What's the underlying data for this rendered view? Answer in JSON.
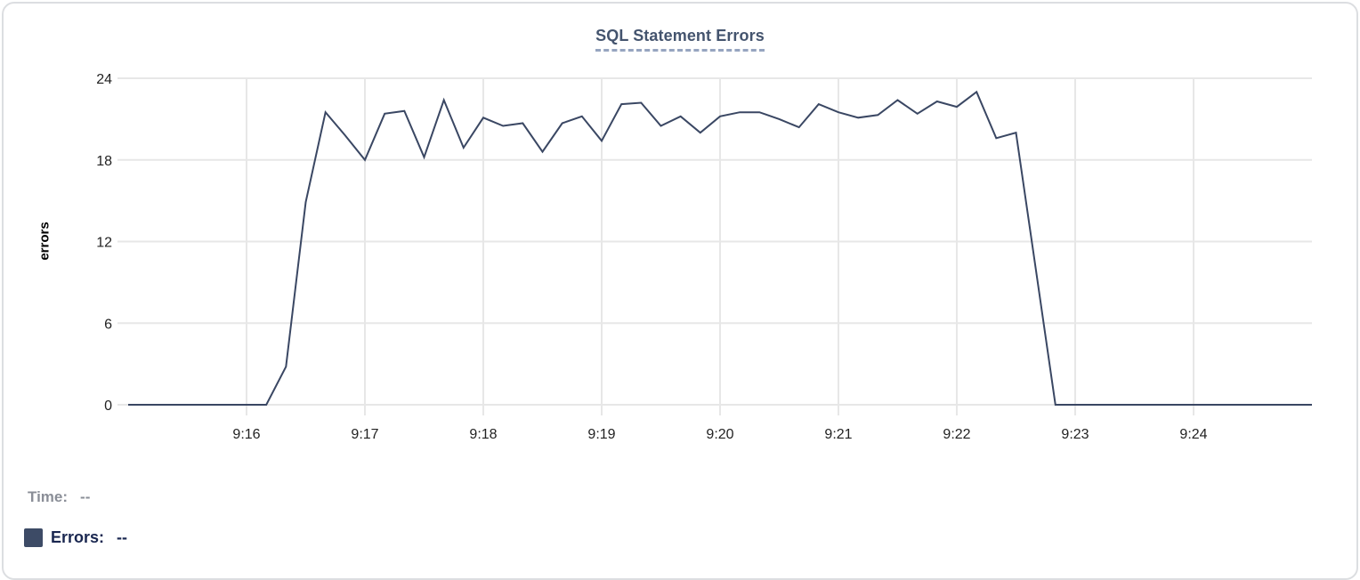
{
  "chart_data": {
    "type": "line",
    "title": "SQL Statement Errors",
    "ylabel": "errors",
    "xlabel": "",
    "y_ticks": [
      0,
      6,
      12,
      18,
      24
    ],
    "ylim": [
      0,
      24
    ],
    "x_tick_labels": [
      "9:16",
      "9:17",
      "9:18",
      "9:19",
      "9:20",
      "9:21",
      "9:22",
      "9:23",
      "9:24"
    ],
    "x_range": [
      "9:15:00",
      "9:25:00"
    ],
    "sample_interval_seconds": 10,
    "grid": true,
    "legend_position": "bottom-left",
    "line_color": "#3a4763",
    "series": [
      {
        "name": "Errors",
        "points": [
          [
            "9:15:00",
            0
          ],
          [
            "9:15:10",
            0
          ],
          [
            "9:15:20",
            0
          ],
          [
            "9:15:30",
            0
          ],
          [
            "9:15:40",
            0
          ],
          [
            "9:15:50",
            0
          ],
          [
            "9:16:00",
            0
          ],
          [
            "9:16:10",
            0
          ],
          [
            "9:16:20",
            2.8
          ],
          [
            "9:16:30",
            14.9
          ],
          [
            "9:16:40",
            21.5
          ],
          [
            "9:16:50",
            19.8
          ],
          [
            "9:17:00",
            18
          ],
          [
            "9:17:10",
            21.4
          ],
          [
            "9:17:20",
            21.6
          ],
          [
            "9:17:30",
            18.2
          ],
          [
            "9:17:40",
            22.4
          ],
          [
            "9:17:50",
            18.9
          ],
          [
            "9:18:00",
            21.1
          ],
          [
            "9:18:10",
            20.5
          ],
          [
            "9:18:20",
            20.7
          ],
          [
            "9:18:30",
            18.6
          ],
          [
            "9:18:40",
            20.7
          ],
          [
            "9:18:50",
            21.2
          ],
          [
            "9:19:00",
            19.4
          ],
          [
            "9:19:10",
            22.1
          ],
          [
            "9:19:20",
            22.2
          ],
          [
            "9:19:30",
            20.5
          ],
          [
            "9:19:40",
            21.2
          ],
          [
            "9:19:50",
            20
          ],
          [
            "9:20:00",
            21.2
          ],
          [
            "9:20:10",
            21.5
          ],
          [
            "9:20:20",
            21.5
          ],
          [
            "9:20:30",
            21
          ],
          [
            "9:20:40",
            20.4
          ],
          [
            "9:20:50",
            22.1
          ],
          [
            "9:21:00",
            21.5
          ],
          [
            "9:21:10",
            21.1
          ],
          [
            "9:21:20",
            21.3
          ],
          [
            "9:21:30",
            22.4
          ],
          [
            "9:21:40",
            21.4
          ],
          [
            "9:21:50",
            22.3
          ],
          [
            "9:22:00",
            21.9
          ],
          [
            "9:22:10",
            23
          ],
          [
            "9:22:20",
            19.6
          ],
          [
            "9:22:30",
            20
          ],
          [
            "9:22:40",
            10
          ],
          [
            "9:22:50",
            0
          ],
          [
            "9:23:00",
            0
          ],
          [
            "9:23:10",
            0
          ],
          [
            "9:23:20",
            0
          ],
          [
            "9:23:30",
            0
          ],
          [
            "9:23:40",
            0
          ],
          [
            "9:23:50",
            0
          ],
          [
            "9:24:00",
            0
          ],
          [
            "9:24:10",
            0
          ],
          [
            "9:24:20",
            0
          ],
          [
            "9:24:30",
            0
          ],
          [
            "9:24:40",
            0
          ],
          [
            "9:24:50",
            0
          ],
          [
            "9:25:00",
            0
          ]
        ]
      }
    ]
  },
  "legend": {
    "time_label": "Time:",
    "time_value": "--",
    "errors_label": "Errors:",
    "errors_value": "--",
    "errors_swatch_color": "#3d4b66"
  },
  "colors": {
    "title": "#44546e",
    "title_underline": "#96a5c0",
    "axis_text": "#222222",
    "gridline": "#e7e7e7",
    "time_text": "#8a8e97",
    "errors_text": "#1a2750",
    "card_border": "#dcdee1"
  }
}
